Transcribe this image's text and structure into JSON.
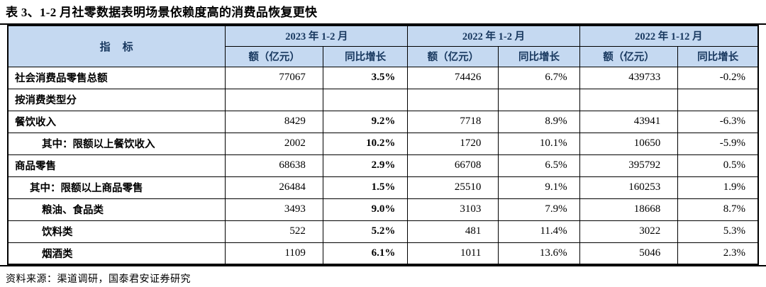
{
  "title": "表 3、1-2 月社零数据表明场景依赖度高的消费品恢复更快",
  "footer_source": "资料来源：渠道调研，国泰君安证券研究",
  "colors": {
    "header_bg": "#C5D9F1",
    "header_text": "#17375E",
    "border": "#000000",
    "body_text": "#000000"
  },
  "table": {
    "indicator_header": "指　标",
    "groups": [
      {
        "label": "2023 年 1-2 月"
      },
      {
        "label": "2022 年 1-2 月"
      },
      {
        "label": "2022 年 1-12 月"
      }
    ],
    "sub_headers": {
      "amount": "额（亿元）",
      "growth": "同比增长"
    },
    "rows": [
      {
        "label": "社会消费品零售总额",
        "indent": 0,
        "v": [
          "77067",
          "3.5%",
          "74426",
          "6.7%",
          "439733",
          "-0.2%"
        ]
      },
      {
        "label": "按消费类型分",
        "indent": 0,
        "v": [
          "",
          "",
          "",
          "",
          "",
          ""
        ]
      },
      {
        "label": "餐饮收入",
        "indent": 0,
        "v": [
          "8429",
          "9.2%",
          "7718",
          "8.9%",
          "43941",
          "-6.3%"
        ]
      },
      {
        "label": "其中：限额以上餐饮收入",
        "indent": 2,
        "v": [
          "2002",
          "10.2%",
          "1720",
          "10.1%",
          "10650",
          "-5.9%"
        ]
      },
      {
        "label": "商品零售",
        "indent": 0,
        "v": [
          "68638",
          "2.9%",
          "66708",
          "6.5%",
          "395792",
          "0.5%"
        ]
      },
      {
        "label": "其中：限额以上商品零售",
        "indent": 1,
        "v": [
          "26484",
          "1.5%",
          "25510",
          "9.1%",
          "160253",
          "1.9%"
        ]
      },
      {
        "label": "粮油、食品类",
        "indent": 2,
        "v": [
          "3493",
          "9.0%",
          "3103",
          "7.9%",
          "18668",
          "8.7%"
        ]
      },
      {
        "label": "饮料类",
        "indent": 2,
        "v": [
          "522",
          "5.2%",
          "481",
          "11.4%",
          "3022",
          "5.3%"
        ]
      },
      {
        "label": "烟酒类",
        "indent": 2,
        "v": [
          "1109",
          "6.1%",
          "1011",
          "13.6%",
          "5046",
          "2.3%"
        ]
      }
    ]
  },
  "chart_data": {
    "type": "table",
    "title": "表 3、1-2 月社零数据表明场景依赖度高的消费品恢复更快",
    "columns": [
      "指标",
      "2023 年 1-2 月 额（亿元）",
      "2023 年 1-2 月 同比增长",
      "2022 年 1-2 月 额（亿元）",
      "2022 年 1-2 月 同比增长",
      "2022 年 1-12 月 额（亿元）",
      "2022 年 1-12 月 同比增长"
    ],
    "rows": [
      [
        "社会消费品零售总额",
        77067,
        "3.5%",
        74426,
        "6.7%",
        439733,
        "-0.2%"
      ],
      [
        "按消费类型分",
        null,
        null,
        null,
        null,
        null,
        null
      ],
      [
        "餐饮收入",
        8429,
        "9.2%",
        7718,
        "8.9%",
        43941,
        "-6.3%"
      ],
      [
        "其中：限额以上餐饮收入",
        2002,
        "10.2%",
        1720,
        "10.1%",
        10650,
        "-5.9%"
      ],
      [
        "商品零售",
        68638,
        "2.9%",
        66708,
        "6.5%",
        395792,
        "0.5%"
      ],
      [
        "其中：限额以上商品零售",
        26484,
        "1.5%",
        25510,
        "9.1%",
        160253,
        "1.9%"
      ],
      [
        "粮油、食品类",
        3493,
        "9.0%",
        3103,
        "7.9%",
        18668,
        "8.7%"
      ],
      [
        "饮料类",
        522,
        "5.2%",
        481,
        "11.4%",
        3022,
        "5.3%"
      ],
      [
        "烟酒类",
        1109,
        "6.1%",
        1011,
        "13.6%",
        5046,
        "2.3%"
      ]
    ],
    "source": "资料来源：渠道调研，国泰君安证券研究"
  }
}
